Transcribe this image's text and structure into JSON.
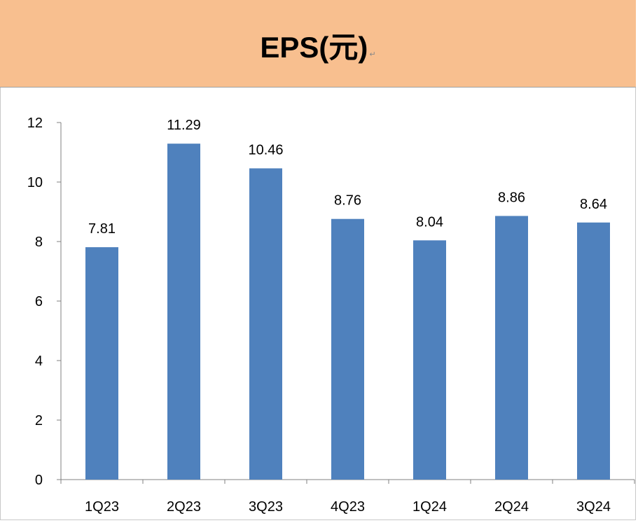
{
  "title_bar": {
    "text": "EPS(元)",
    "return_mark": "↵"
  },
  "colors": {
    "title_background": "#f8bf8f",
    "bar": "#4f81bd",
    "axis": "#808080"
  },
  "chart_data": {
    "type": "bar",
    "title": "EPS(元)",
    "categories": [
      "1Q23",
      "2Q23",
      "3Q23",
      "4Q23",
      "1Q24",
      "2Q24",
      "3Q24"
    ],
    "values": [
      7.81,
      11.29,
      10.46,
      8.76,
      8.04,
      8.86,
      8.64
    ],
    "value_labels": [
      "7.81",
      "11.29",
      "10.46",
      "8.76",
      "8.04",
      "8.86",
      "8.64"
    ],
    "ylim": [
      0,
      12
    ],
    "yticks": [
      0,
      2,
      4,
      6,
      8,
      10,
      12
    ],
    "grid": false,
    "legend": "none",
    "xlabel": "",
    "ylabel": ""
  }
}
